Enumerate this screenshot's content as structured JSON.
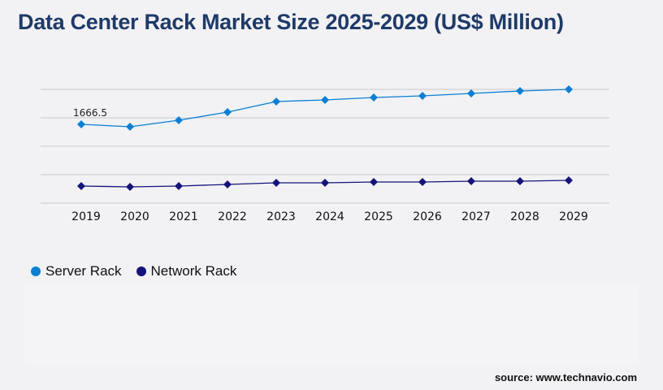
{
  "title": "Data Center Rack Market Size 2025-2029 (US$ Million)",
  "source": "source: www.technavio.com",
  "colors": {
    "server": "#0a7fd4",
    "network": "#15137a",
    "title": "#1f3a68",
    "grid": "#c8c8cc"
  },
  "chart_data": {
    "type": "line",
    "title": "Data Center Rack Market Size 2025-2029 (US$ Million)",
    "categories": [
      "2019",
      "2020",
      "2021",
      "2022",
      "2023",
      "2024",
      "2025",
      "2026",
      "2027",
      "2028",
      "2029"
    ],
    "ylim": [
      0,
      2405
    ],
    "grid": true,
    "legend": "bottom-left",
    "series": [
      {
        "name": "Server Rack",
        "values": [
          1666.5,
          1615,
          1752,
          1924,
          2148,
          2182,
          2233,
          2268,
          2319,
          2371,
          2405
        ],
        "data_labels": [
          "1666.5",
          "",
          "",
          "",
          "",
          "",
          "",
          "",
          "",
          "",
          ""
        ]
      },
      {
        "name": "Network Rack",
        "values": [
          361,
          344,
          361,
          395,
          430,
          430,
          447,
          447,
          464,
          464,
          481
        ]
      }
    ]
  }
}
